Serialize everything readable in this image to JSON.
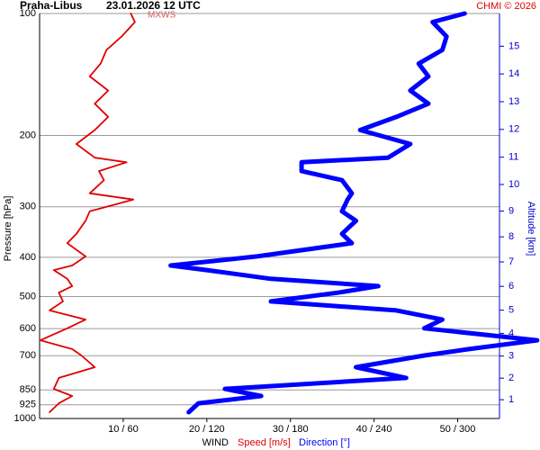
{
  "chart_data": {
    "type": "line",
    "title": "Praha-Libus",
    "subtitle": "23.01.2026 12 UTC",
    "credit": "CHMI © 2026",
    "annotation": "MXWS",
    "ylabel": "Pressure [hPa]",
    "y2label": "Altitude [km]",
    "xlabel": "WIND",
    "y_log": true,
    "y_inverted": true,
    "grid": true,
    "ylim": [
      100,
      1000
    ],
    "yticks": [
      100,
      200,
      300,
      400,
      500,
      600,
      700,
      850,
      925,
      1000
    ],
    "xlim": [
      0,
      55
    ],
    "x2lim": [
      0,
      330
    ],
    "xticks": [
      {
        "value": 10,
        "label": "10 / 60"
      },
      {
        "value": 20,
        "label": "20 / 120"
      },
      {
        "value": 30,
        "label": "30 / 180"
      },
      {
        "value": 40,
        "label": "40 / 240"
      },
      {
        "value": 50,
        "label": "50 / 300"
      }
    ],
    "y2ticks": [
      1,
      2,
      3,
      4,
      5,
      6,
      7,
      8,
      9,
      10,
      11,
      12,
      13,
      14,
      15
    ],
    "pressure": [
      100,
      105,
      114,
      123,
      133,
      143,
      155,
      167,
      180,
      194,
      210,
      227,
      233,
      245,
      258,
      278,
      288,
      308,
      325,
      350,
      369,
      398,
      419,
      430,
      452,
      471,
      489,
      514,
      541,
      570,
      599,
      641,
      674,
      699,
      747,
      794,
      845,
      880,
      917,
      965
    ],
    "series": [
      {
        "name": "Speed [m/s]",
        "color": "#e00000",
        "values": [
          10.9,
          11.4,
          9.8,
          8.0,
          7.3,
          6.0,
          8.2,
          6.6,
          8.2,
          6.6,
          4.4,
          6.6,
          10.4,
          7.1,
          7.7,
          6.0,
          11.2,
          6.0,
          5.5,
          4.4,
          3.3,
          5.5,
          3.9,
          1.7,
          3.3,
          3.9,
          2.3,
          2.8,
          1.2,
          5.5,
          3.3,
          0.1,
          3.9,
          5.0,
          6.6,
          2.3,
          1.7,
          3.9,
          2.3,
          1.2
        ]
      },
      {
        "name": "Direction [°]",
        "color": "#0000ff",
        "axis": "x2",
        "values": [
          305,
          282,
          292,
          289,
          272,
          279,
          266,
          279,
          256,
          230,
          266,
          250,
          188,
          188,
          217,
          224,
          221,
          217,
          227,
          217,
          224,
          156,
          94,
          120,
          166,
          243,
          214,
          166,
          256,
          289,
          276,
          357,
          308,
          276,
          227,
          263,
          133,
          159,
          114,
          107
        ]
      }
    ]
  }
}
